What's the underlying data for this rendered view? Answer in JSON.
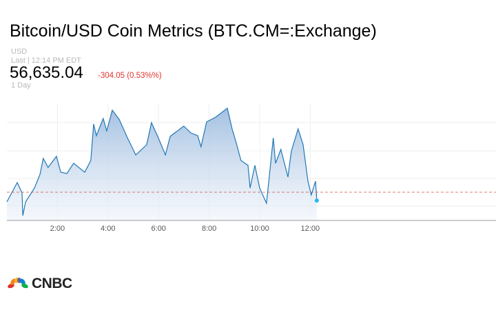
{
  "header": {
    "title": "Bitcoin/USD Coin Metrics (BTC.CM=:Exchange)",
    "currency": "USD",
    "last_label": "Last | 12:14 PM EDT",
    "price": "56,635.04",
    "change": "-304.05 (0.53%%)",
    "range": "1 Day"
  },
  "colors": {
    "line": "#1f77b4",
    "fill": "#a9c4e2",
    "change": "#e0332b",
    "prev_close": "#d0503a",
    "marker": "#29b6f6"
  },
  "chart_data": {
    "type": "area",
    "title": "Bitcoin/USD Coin Metrics 1 Day",
    "xlabel": "",
    "ylabel": "",
    "xlim": [
      0,
      19.35
    ],
    "ylim": [
      55914,
      60164
    ],
    "previous_close": 56939.09,
    "x_ticks": [
      {
        "h": 2,
        "label": "2:00"
      },
      {
        "h": 4,
        "label": "4:00"
      },
      {
        "h": 6,
        "label": "6:00"
      },
      {
        "h": 8,
        "label": "8:00"
      },
      {
        "h": 10,
        "label": "10:00"
      },
      {
        "h": 12,
        "label": "12:00"
      }
    ],
    "grid": true,
    "x": [
      0,
      0.41,
      0.6,
      0.63,
      0.74,
      1.09,
      1.31,
      1.44,
      1.63,
      1.96,
      2.13,
      2.37,
      2.64,
      3.08,
      3.32,
      3.43,
      3.54,
      3.81,
      3.95,
      4.17,
      4.44,
      4.77,
      5.1,
      5.53,
      5.72,
      5.99,
      6.27,
      6.46,
      7.0,
      7.28,
      7.55,
      7.68,
      7.9,
      8.26,
      8.72,
      8.91,
      9.07,
      9.26,
      9.54,
      9.62,
      9.81,
      10.0,
      10.27,
      10.35,
      10.54,
      10.63,
      10.84,
      11.12,
      11.25,
      11.52,
      11.72,
      11.91,
      12.04,
      12.21,
      12.26
    ],
    "values": [
      56589,
      57289,
      56914,
      56089,
      56589,
      57089,
      57589,
      58164,
      57839,
      58239,
      57664,
      57614,
      57989,
      57664,
      58089,
      59414,
      58989,
      59614,
      59164,
      59914,
      59589,
      58914,
      58289,
      58664,
      59464,
      58914,
      58289,
      58964,
      59339,
      59089,
      58989,
      58589,
      59489,
      59664,
      59989,
      59239,
      58739,
      58089,
      57914,
      57089,
      57914,
      57089,
      56539,
      57239,
      58914,
      57989,
      58489,
      57489,
      58414,
      59239,
      58664,
      57339,
      56839,
      57339,
      56635
    ]
  },
  "brand": {
    "logo_text": "CNBC"
  }
}
